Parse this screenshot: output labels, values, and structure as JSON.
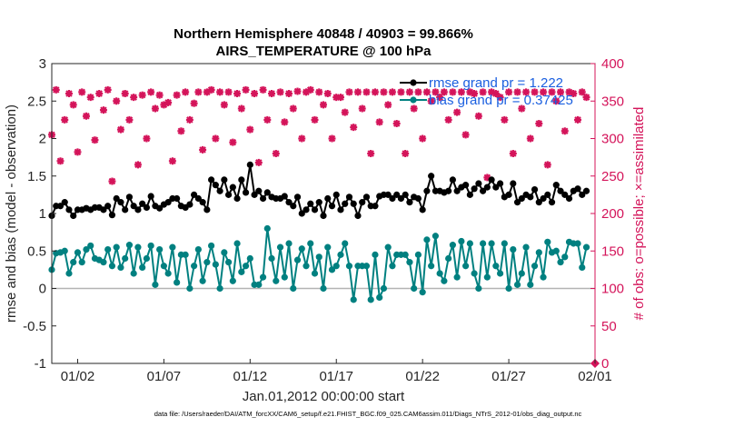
{
  "chart_data": {
    "type": "line",
    "title": "Northern Hemisphere 40848 / 40903 = 99.866%",
    "subtitle": "AIRS_TEMPERATURE @ 100 hPa",
    "xlabel": "Jan.01,2012 00:00:00 start",
    "ylabel": "rmse and bias (model - observation)",
    "y2label": "# of obs: o=possible; ×=assimilated",
    "ylim": [
      -1,
      3
    ],
    "y2lim": [
      0,
      400
    ],
    "xlim": [
      0.5,
      31.5
    ],
    "yticks": [
      "-1",
      "-0.5",
      "0",
      "0.5",
      "1",
      "1.5",
      "2",
      "2.5",
      "3"
    ],
    "y2ticks": [
      "0",
      "50",
      "100",
      "150",
      "200",
      "250",
      "300",
      "350",
      "400"
    ],
    "xticks": [
      {
        "pos": 2,
        "label": "01/02"
      },
      {
        "pos": 7,
        "label": "01/07"
      },
      {
        "pos": 12,
        "label": "01/12"
      },
      {
        "pos": 17,
        "label": "01/17"
      },
      {
        "pos": 22,
        "label": "01/22"
      },
      {
        "pos": 27,
        "label": "01/27"
      },
      {
        "pos": 32,
        "label": "02/01"
      }
    ],
    "grid": false,
    "legend_position": "top-right",
    "colors": {
      "rmse": "#000000",
      "bias": "#008080",
      "obs": "#d4145a",
      "zero_line": "#b3b3b3",
      "legend_text": "#1a5fe0",
      "axis": "#262626"
    },
    "series": [
      {
        "name": "rmse grand pr = 1.222",
        "x": [
          0.5,
          0.75,
          1.0,
          1.25,
          1.5,
          1.75,
          2.0,
          2.25,
          2.5,
          2.75,
          3.0,
          3.25,
          3.5,
          3.75,
          4.0,
          4.25,
          4.5,
          4.75,
          5.0,
          5.25,
          5.5,
          5.75,
          6.0,
          6.25,
          6.5,
          6.75,
          7.0,
          7.25,
          7.5,
          7.75,
          8.0,
          8.25,
          8.5,
          8.75,
          9.0,
          9.25,
          9.5,
          9.75,
          10.0,
          10.25,
          10.5,
          10.75,
          11.0,
          11.25,
          11.5,
          11.75,
          12.0,
          12.25,
          12.5,
          12.75,
          13.0,
          13.25,
          13.5,
          13.75,
          14.0,
          14.25,
          14.5,
          14.75,
          15.0,
          15.25,
          15.5,
          15.75,
          16.0,
          16.25,
          16.5,
          16.75,
          17.0,
          17.25,
          17.5,
          17.75,
          18.0,
          18.25,
          18.5,
          18.75,
          19.0,
          19.25,
          19.5,
          19.75,
          20.0,
          20.25,
          20.5,
          20.75,
          21.0,
          21.25,
          21.5,
          21.75,
          22.0,
          22.25,
          22.5,
          22.75,
          23.0,
          23.25,
          23.5,
          23.75,
          24.0,
          24.25,
          24.5,
          24.75,
          25.0,
          25.25,
          25.5,
          25.75,
          26.0,
          26.25,
          26.5,
          26.75,
          27.0,
          27.25,
          27.5,
          27.75,
          28.0,
          28.25,
          28.5,
          28.75,
          29.0,
          29.25,
          29.5,
          29.75,
          30.0,
          30.25,
          30.5,
          30.75,
          31.0,
          31.25,
          31.5
        ],
        "values": [
          0.97,
          1.1,
          1.1,
          1.15,
          1.05,
          0.97,
          1.05,
          1.05,
          1.07,
          1.05,
          1.08,
          1.08,
          1.05,
          1.1,
          0.98,
          1.2,
          1.15,
          1.05,
          1.22,
          1.1,
          1.05,
          1.13,
          1.08,
          1.23,
          1.1,
          1.07,
          1.12,
          1.15,
          1.2,
          1.2,
          1.1,
          1.08,
          1.12,
          1.25,
          1.2,
          1.15,
          1.05,
          1.45,
          1.38,
          1.3,
          1.45,
          1.25,
          1.35,
          1.2,
          1.45,
          1.28,
          1.65,
          1.25,
          1.3,
          1.2,
          1.28,
          1.22,
          1.2,
          1.2,
          1.23,
          1.15,
          1.1,
          1.22,
          1.0,
          1.05,
          1.13,
          1.05,
          1.15,
          0.97,
          1.2,
          1.1,
          1.25,
          1.05,
          1.13,
          1.22,
          1.13,
          0.97,
          1.15,
          1.22,
          1.1,
          1.1,
          1.23,
          1.25,
          1.25,
          1.2,
          1.25,
          1.2,
          1.25,
          1.15,
          1.22,
          1.2,
          1.05,
          1.3,
          1.5,
          1.3,
          1.3,
          1.28,
          1.3,
          1.45,
          1.3,
          1.35,
          1.38,
          1.25,
          1.33,
          1.4,
          1.3,
          1.35,
          1.45,
          1.35,
          1.4,
          1.22,
          1.25,
          1.4,
          1.15,
          1.2,
          1.25,
          1.22,
          1.32,
          1.15,
          1.2,
          1.25,
          1.15,
          1.38,
          1.3,
          1.25,
          1.2,
          1.3,
          1.33,
          1.25,
          1.3
        ]
      },
      {
        "name": "bias grand pr = 0.37425",
        "x": [
          0.5,
          0.75,
          1.0,
          1.25,
          1.5,
          1.75,
          2.0,
          2.25,
          2.5,
          2.75,
          3.0,
          3.25,
          3.5,
          3.75,
          4.0,
          4.25,
          4.5,
          4.75,
          5.0,
          5.25,
          5.5,
          5.75,
          6.0,
          6.25,
          6.5,
          6.75,
          7.0,
          7.25,
          7.5,
          7.75,
          8.0,
          8.25,
          8.5,
          8.75,
          9.0,
          9.25,
          9.5,
          9.75,
          10.0,
          10.25,
          10.5,
          10.75,
          11.0,
          11.25,
          11.5,
          11.75,
          12.0,
          12.25,
          12.5,
          12.75,
          13.0,
          13.25,
          13.5,
          13.75,
          14.0,
          14.25,
          14.5,
          14.75,
          15.0,
          15.25,
          15.5,
          15.75,
          16.0,
          16.25,
          16.5,
          16.75,
          17.0,
          17.25,
          17.5,
          17.75,
          18.0,
          18.25,
          18.5,
          18.75,
          19.0,
          19.25,
          19.5,
          19.75,
          20.0,
          20.25,
          20.5,
          20.75,
          21.0,
          21.25,
          21.5,
          21.75,
          22.0,
          22.25,
          22.5,
          22.75,
          23.0,
          23.25,
          23.5,
          23.75,
          24.0,
          24.25,
          24.5,
          24.75,
          25.0,
          25.25,
          25.5,
          25.75,
          26.0,
          26.25,
          26.5,
          26.75,
          27.0,
          27.25,
          27.5,
          27.75,
          28.0,
          28.25,
          28.5,
          28.75,
          29.0,
          29.25,
          29.5,
          29.75,
          30.0,
          30.25,
          30.5,
          30.75,
          31.0,
          31.25,
          31.5
        ],
        "values": [
          0.25,
          0.47,
          0.48,
          0.5,
          0.2,
          0.35,
          0.48,
          0.35,
          0.52,
          0.57,
          0.4,
          0.38,
          0.35,
          0.52,
          0.3,
          0.55,
          0.28,
          0.4,
          0.58,
          0.2,
          0.55,
          0.28,
          0.4,
          0.57,
          0.05,
          0.52,
          0.3,
          0.2,
          0.55,
          0.08,
          0.45,
          0.45,
          0.0,
          0.3,
          0.52,
          0.1,
          0.35,
          0.57,
          0.32,
          0.0,
          0.48,
          0.35,
          0.1,
          0.6,
          0.22,
          0.3,
          0.4,
          0.05,
          0.05,
          0.15,
          0.8,
          0.4,
          0.1,
          0.55,
          0.15,
          0.6,
          0.0,
          0.38,
          0.53,
          0.3,
          0.6,
          0.2,
          0.42,
          0.0,
          0.55,
          0.25,
          0.3,
          0.45,
          0.6,
          0.3,
          -0.15,
          0.3,
          0.3,
          0.3,
          -0.15,
          0.45,
          -0.12,
          0.0,
          0.55,
          0.3,
          0.45,
          0.45,
          0.45,
          0.35,
          0.0,
          0.45,
          -0.05,
          0.65,
          0.3,
          0.7,
          0.2,
          0.1,
          0.4,
          0.58,
          0.15,
          0.63,
          0.3,
          0.6,
          0.2,
          0.0,
          0.6,
          0.15,
          0.6,
          0.3,
          0.2,
          0.6,
          0.0,
          0.52,
          0.05,
          0.2,
          0.55,
          0.05,
          0.3,
          0.48,
          0.15,
          0.62,
          0.48,
          0.5,
          0.35,
          0.42,
          0.62,
          0.6,
          0.6,
          0.28,
          0.55
        ]
      },
      {
        "name": "# of obs possible",
        "x": [
          0.5,
          0.75,
          1.0,
          1.25,
          1.5,
          1.75,
          2.0,
          2.25,
          2.5,
          2.75,
          3.0,
          3.25,
          3.5,
          3.75,
          4.0,
          4.25,
          4.5,
          4.75,
          5.0,
          5.25,
          5.5,
          5.75,
          6.0,
          6.25,
          6.5,
          6.75,
          7.0,
          7.25,
          7.5,
          7.75,
          8.0,
          8.25,
          8.5,
          8.75,
          9.0,
          9.25,
          9.5,
          9.75,
          10.0,
          10.25,
          10.5,
          10.75,
          11.0,
          11.25,
          11.5,
          11.75,
          12.0,
          12.25,
          12.5,
          12.75,
          13.0,
          13.25,
          13.5,
          13.75,
          14.0,
          14.25,
          14.5,
          14.75,
          15.0,
          15.25,
          15.5,
          15.75,
          16.0,
          16.25,
          16.5,
          16.75,
          17.0,
          17.25,
          17.5,
          17.75,
          18.0,
          18.25,
          18.5,
          18.75,
          19.0,
          19.25,
          19.5,
          19.75,
          20.0,
          20.25,
          20.5,
          20.75,
          21.0,
          21.25,
          21.5,
          21.75,
          22.0,
          22.25,
          22.5,
          22.75,
          23.0,
          23.25,
          23.5,
          23.75,
          24.0,
          24.25,
          24.5,
          24.75,
          25.0,
          25.25,
          25.5,
          25.75,
          26.0,
          26.25,
          26.5,
          26.75,
          27.0,
          27.25,
          27.5,
          27.75,
          28.0,
          28.25,
          28.5,
          28.75,
          29.0,
          29.25,
          29.5,
          29.75,
          30.0,
          30.25,
          30.5,
          30.75,
          31.0,
          31.25,
          31.5
        ],
        "values": [
          305,
          365,
          270,
          325,
          360,
          345,
          282,
          362,
          330,
          355,
          298,
          360,
          338,
          365,
          243,
          350,
          312,
          360,
          325,
          355,
          265,
          358,
          300,
          362,
          340,
          358,
          345,
          348,
          270,
          358,
          310,
          362,
          325,
          347,
          362,
          285,
          362,
          365,
          300,
          362,
          345,
          362,
          295,
          360,
          340,
          365,
          312,
          360,
          268,
          365,
          325,
          360,
          280,
          362,
          322,
          360,
          340,
          363,
          300,
          362,
          365,
          325,
          362,
          345,
          360,
          300,
          355,
          355,
          335,
          362,
          315,
          362,
          340,
          362,
          280,
          362,
          322,
          362,
          345,
          362,
          320,
          362,
          280,
          362,
          340,
          362,
          300,
          362,
          350,
          362,
          355,
          362,
          325,
          362,
          335,
          362,
          305,
          362,
          360,
          330,
          362,
          248,
          362,
          360,
          355,
          325,
          362,
          280,
          362,
          340,
          362,
          300,
          362,
          320,
          362,
          265,
          362,
          350,
          362,
          310,
          362,
          360,
          325,
          362,
          355
        ]
      },
      {
        "name": "# of obs assimilated",
        "x": [
          0.5,
          0.75,
          1.0,
          1.25,
          1.5,
          1.75,
          2.0,
          2.25,
          2.5,
          2.75,
          3.0,
          3.25,
          3.5,
          3.75,
          4.0,
          4.25,
          4.5,
          4.75,
          5.0,
          5.25,
          5.5,
          5.75,
          6.0,
          6.25,
          6.5,
          6.75,
          7.0,
          7.25,
          7.5,
          7.75,
          8.0,
          8.25,
          8.5,
          8.75,
          9.0,
          9.25,
          9.5,
          9.75,
          10.0,
          10.25,
          10.5,
          10.75,
          11.0,
          11.25,
          11.5,
          11.75,
          12.0,
          12.25,
          12.5,
          12.75,
          13.0,
          13.25,
          13.5,
          13.75,
          14.0,
          14.25,
          14.5,
          14.75,
          15.0,
          15.25,
          15.5,
          15.75,
          16.0,
          16.25,
          16.5,
          16.75,
          17.0,
          17.25,
          17.5,
          17.75,
          18.0,
          18.25,
          18.5,
          18.75,
          19.0,
          19.25,
          19.5,
          19.75,
          20.0,
          20.25,
          20.5,
          20.75,
          21.0,
          21.25,
          21.5,
          21.75,
          22.0,
          22.25,
          22.5,
          22.75,
          23.0,
          23.25,
          23.5,
          23.75,
          24.0,
          24.25,
          24.5,
          24.75,
          25.0,
          25.25,
          25.5,
          25.75,
          26.0,
          26.25,
          26.5,
          26.75,
          27.0,
          27.25,
          27.5,
          27.75,
          28.0,
          28.25,
          28.5,
          28.75,
          29.0,
          29.25,
          29.5,
          29.75,
          30.0,
          30.25,
          30.5,
          30.75,
          31.0,
          31.25,
          31.5
        ],
        "values": [
          305,
          365,
          270,
          325,
          360,
          345,
          282,
          362,
          330,
          355,
          298,
          360,
          338,
          365,
          243,
          350,
          312,
          360,
          325,
          355,
          265,
          358,
          300,
          362,
          340,
          358,
          345,
          348,
          270,
          358,
          310,
          362,
          325,
          347,
          362,
          285,
          362,
          365,
          300,
          362,
          345,
          362,
          295,
          360,
          340,
          365,
          312,
          360,
          268,
          365,
          325,
          360,
          280,
          362,
          322,
          360,
          340,
          363,
          300,
          362,
          365,
          325,
          362,
          345,
          360,
          300,
          355,
          355,
          335,
          362,
          315,
          362,
          340,
          362,
          280,
          362,
          322,
          362,
          345,
          362,
          320,
          362,
          280,
          362,
          340,
          362,
          300,
          362,
          350,
          362,
          355,
          362,
          325,
          362,
          335,
          362,
          305,
          362,
          360,
          330,
          362,
          248,
          362,
          360,
          355,
          325,
          362,
          280,
          362,
          340,
          362,
          300,
          362,
          320,
          362,
          265,
          362,
          350,
          362,
          310,
          362,
          360,
          325,
          362,
          355
        ]
      }
    ],
    "legend": [
      {
        "label": "rmse grand pr = 1.222"
      },
      {
        "label": "bias grand pr = 0.37425"
      }
    ],
    "footer": "data file: /Users/raeder/DAI/ATM_forcXX/CAM6_setup/f.e21.FHIST_BGC.f09_025.CAM6assim.011/Diags_NTrS_2012-01/obs_diag_output.nc"
  }
}
